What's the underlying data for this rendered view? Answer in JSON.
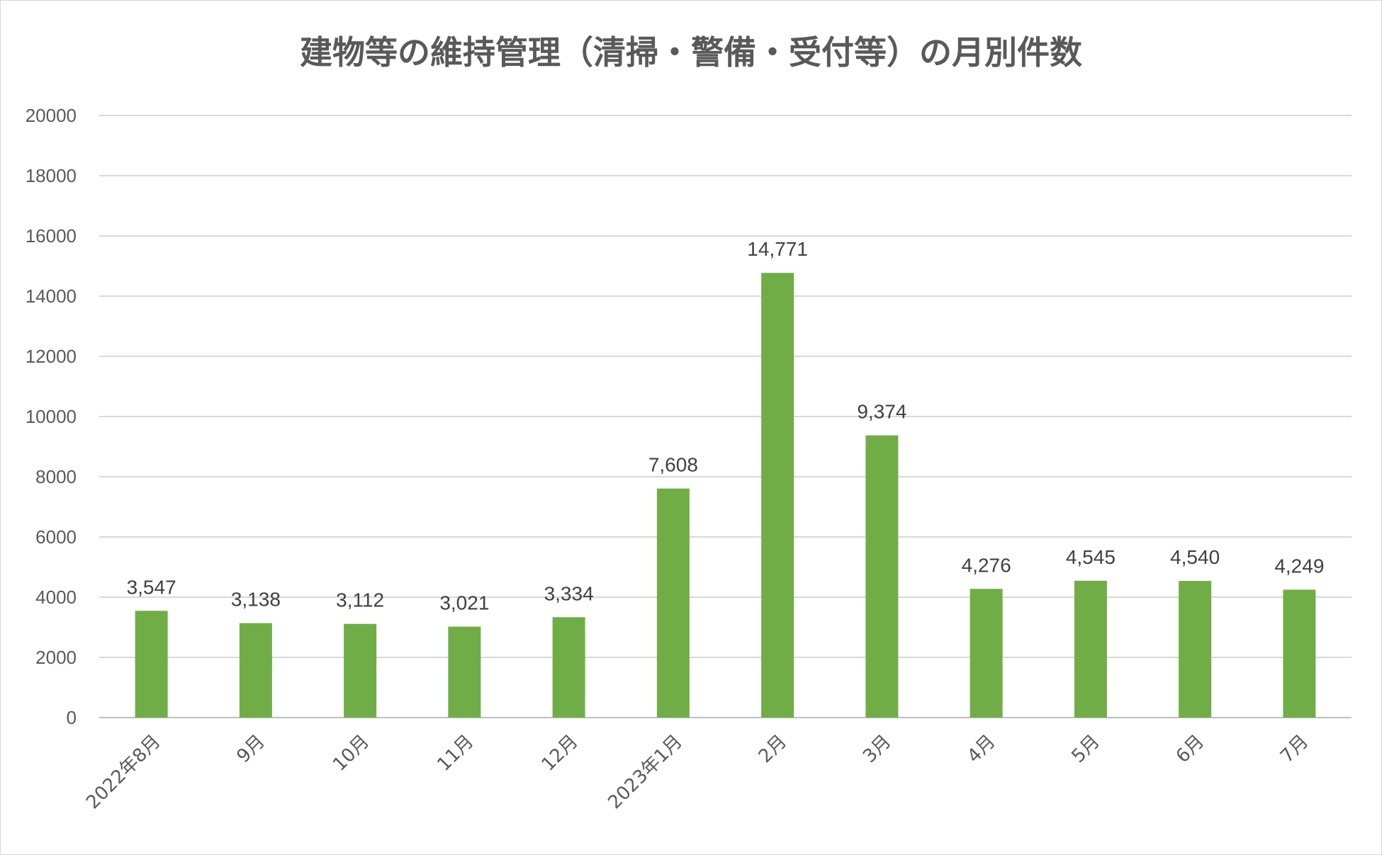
{
  "chart_data": {
    "type": "bar",
    "title": "建物等の維持管理（清掃・警備・受付等）の月別件数",
    "xlabel": "",
    "ylabel": "",
    "ylim": [
      0,
      20000
    ],
    "yticks": [
      "0",
      "2000",
      "4000",
      "6000",
      "8000",
      "10000",
      "12000",
      "14000",
      "16000",
      "18000",
      "20000"
    ],
    "grid": true,
    "legend": "none",
    "bar_color": "#70ad47",
    "categories": [
      "2022年8月",
      "9月",
      "10月",
      "11月",
      "12月",
      "2023年1月",
      "2月",
      "3月",
      "4月",
      "5月",
      "6月",
      "7月"
    ],
    "values": [
      3547,
      3138,
      3112,
      3021,
      3334,
      7608,
      14771,
      9374,
      4276,
      4545,
      4540,
      4249
    ],
    "data_labels": [
      "3,547",
      "3,138",
      "3,112",
      "3,021",
      "3,334",
      "7,608",
      "14,771",
      "9,374",
      "4,276",
      "4,545",
      "4,540",
      "4,249"
    ]
  }
}
